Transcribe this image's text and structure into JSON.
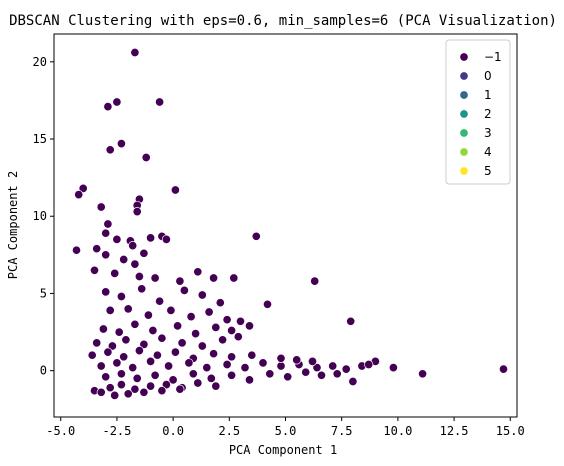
{
  "chart_data": {
    "type": "scatter",
    "title": "DBSCAN Clustering with eps=0.6, min_samples=6 (PCA Visualization)",
    "xlabel": "PCA Component 1",
    "ylabel": "PCA Component 2",
    "xlim": [
      -5.3,
      15.3
    ],
    "ylim": [
      -3.0,
      21.8
    ],
    "x_ticks": [
      -5.0,
      -2.5,
      0.0,
      2.5,
      5.0,
      7.5,
      10.0,
      12.5,
      15.0
    ],
    "x_tick_labels": [
      "-5.0",
      "-2.5",
      "0.0",
      "2.5",
      "5.0",
      "7.5",
      "10.0",
      "12.5",
      "15.0"
    ],
    "y_ticks": [
      0,
      5,
      10,
      15,
      20
    ],
    "y_tick_labels": [
      "0",
      "5",
      "10",
      "15",
      "20"
    ],
    "grid": false,
    "legend_position": "top-right",
    "legend": [
      {
        "label": "−1",
        "color": "#440154"
      },
      {
        "label": "0",
        "color": "#443983"
      },
      {
        "label": "1",
        "color": "#31688e"
      },
      {
        "label": "2",
        "color": "#21918c"
      },
      {
        "label": "3",
        "color": "#35b779"
      },
      {
        "label": "4",
        "color": "#90d743"
      },
      {
        "label": "5",
        "color": "#fde725"
      }
    ],
    "series": [
      {
        "name": "−1",
        "color": "#440154",
        "points": [
          [
            -1.7,
            20.6
          ],
          [
            -2.5,
            17.4
          ],
          [
            -2.9,
            17.1
          ],
          [
            -0.6,
            17.4
          ],
          [
            -2.3,
            14.7
          ],
          [
            -2.8,
            14.3
          ],
          [
            -1.2,
            13.8
          ],
          [
            -4.0,
            11.8
          ],
          [
            -4.2,
            11.4
          ],
          [
            -3.2,
            10.6
          ],
          [
            0.1,
            11.7
          ],
          [
            -1.5,
            11.1
          ],
          [
            -1.6,
            10.7
          ],
          [
            -1.6,
            10.3
          ],
          [
            -2.9,
            9.5
          ],
          [
            -4.3,
            7.8
          ],
          [
            -3.0,
            8.9
          ],
          [
            -2.5,
            8.5
          ],
          [
            -1.9,
            8.4
          ],
          [
            -0.5,
            8.7
          ],
          [
            -0.3,
            8.5
          ],
          [
            -3.4,
            7.9
          ],
          [
            -3.0,
            7.5
          ],
          [
            -2.2,
            7.2
          ],
          [
            -1.0,
            8.6
          ],
          [
            -1.8,
            8.1
          ],
          [
            -1.3,
            7.6
          ],
          [
            -1.7,
            6.9
          ],
          [
            -3.5,
            6.5
          ],
          [
            -2.6,
            6.3
          ],
          [
            -1.5,
            6.1
          ],
          [
            -0.8,
            6.0
          ],
          [
            0.3,
            5.8
          ],
          [
            1.1,
            6.4
          ],
          [
            1.8,
            6.0
          ],
          [
            3.7,
            8.7
          ],
          [
            2.7,
            6.0
          ],
          [
            6.3,
            5.8
          ],
          [
            4.2,
            4.3
          ],
          [
            7.9,
            3.2
          ],
          [
            -3.0,
            5.1
          ],
          [
            -2.3,
            4.8
          ],
          [
            -1.4,
            5.3
          ],
          [
            -0.6,
            4.5
          ],
          [
            0.5,
            5.2
          ],
          [
            1.3,
            4.9
          ],
          [
            2.1,
            4.4
          ],
          [
            -2.8,
            3.9
          ],
          [
            -2.0,
            4.0
          ],
          [
            -1.1,
            3.6
          ],
          [
            -0.1,
            3.9
          ],
          [
            0.8,
            3.5
          ],
          [
            1.6,
            3.8
          ],
          [
            2.4,
            3.3
          ],
          [
            -3.1,
            2.7
          ],
          [
            -2.4,
            2.5
          ],
          [
            -1.7,
            3.0
          ],
          [
            -0.9,
            2.6
          ],
          [
            0.2,
            2.9
          ],
          [
            1.0,
            2.4
          ],
          [
            1.9,
            2.8
          ],
          [
            2.6,
            2.6
          ],
          [
            3.0,
            3.2
          ],
          [
            3.4,
            2.9
          ],
          [
            2.9,
            2.2
          ],
          [
            -3.4,
            1.8
          ],
          [
            -2.7,
            1.6
          ],
          [
            -2.1,
            2.0
          ],
          [
            -1.3,
            1.7
          ],
          [
            -0.5,
            2.1
          ],
          [
            0.4,
            1.8
          ],
          [
            1.3,
            1.6
          ],
          [
            2.2,
            2.0
          ],
          [
            -3.6,
            1.0
          ],
          [
            -2.9,
            1.2
          ],
          [
            -2.2,
            0.9
          ],
          [
            -1.5,
            1.3
          ],
          [
            -0.7,
            1.0
          ],
          [
            0.1,
            1.2
          ],
          [
            0.9,
            0.8
          ],
          [
            1.8,
            1.1
          ],
          [
            2.6,
            0.9
          ],
          [
            3.5,
            1.0
          ],
          [
            -3.2,
            0.3
          ],
          [
            -2.5,
            0.5
          ],
          [
            -1.8,
            0.2
          ],
          [
            -1.0,
            0.6
          ],
          [
            -0.2,
            0.3
          ],
          [
            0.7,
            0.5
          ],
          [
            1.5,
            0.2
          ],
          [
            2.4,
            0.4
          ],
          [
            3.2,
            0.2
          ],
          [
            4.0,
            0.5
          ],
          [
            4.8,
            0.3
          ],
          [
            5.6,
            0.4
          ],
          [
            6.4,
            0.2
          ],
          [
            7.1,
            0.3
          ],
          [
            7.7,
            0.1
          ],
          [
            8.4,
            0.3
          ],
          [
            9.0,
            0.6
          ],
          [
            8.7,
            0.4
          ],
          [
            9.8,
            0.2
          ],
          [
            -3.0,
            -0.4
          ],
          [
            -2.3,
            -0.2
          ],
          [
            -1.6,
            -0.5
          ],
          [
            -0.8,
            -0.3
          ],
          [
            0.0,
            -0.6
          ],
          [
            0.9,
            -0.2
          ],
          [
            1.7,
            -0.5
          ],
          [
            2.6,
            -0.3
          ],
          [
            3.4,
            -0.6
          ],
          [
            4.3,
            -0.2
          ],
          [
            5.1,
            -0.4
          ],
          [
            5.9,
            -0.1
          ],
          [
            6.6,
            -0.3
          ],
          [
            7.3,
            -0.2
          ],
          [
            8.0,
            -0.7
          ],
          [
            4.8,
            0.8
          ],
          [
            5.5,
            0.7
          ],
          [
            6.2,
            0.6
          ],
          [
            -3.5,
            -1.3
          ],
          [
            -3.2,
            -1.4
          ],
          [
            -2.8,
            -1.1
          ],
          [
            -2.3,
            -0.9
          ],
          [
            -1.7,
            -1.2
          ],
          [
            -1.0,
            -1.0
          ],
          [
            -0.3,
            -0.9
          ],
          [
            0.4,
            -1.1
          ],
          [
            1.1,
            -0.8
          ],
          [
            1.9,
            -1.0
          ],
          [
            -2.0,
            -1.5
          ],
          [
            -1.3,
            -1.4
          ],
          [
            -0.5,
            -1.3
          ],
          [
            0.3,
            -1.2
          ],
          [
            -2.6,
            -1.6
          ],
          [
            11.1,
            -0.2
          ],
          [
            14.7,
            0.1
          ]
        ]
      }
    ]
  }
}
